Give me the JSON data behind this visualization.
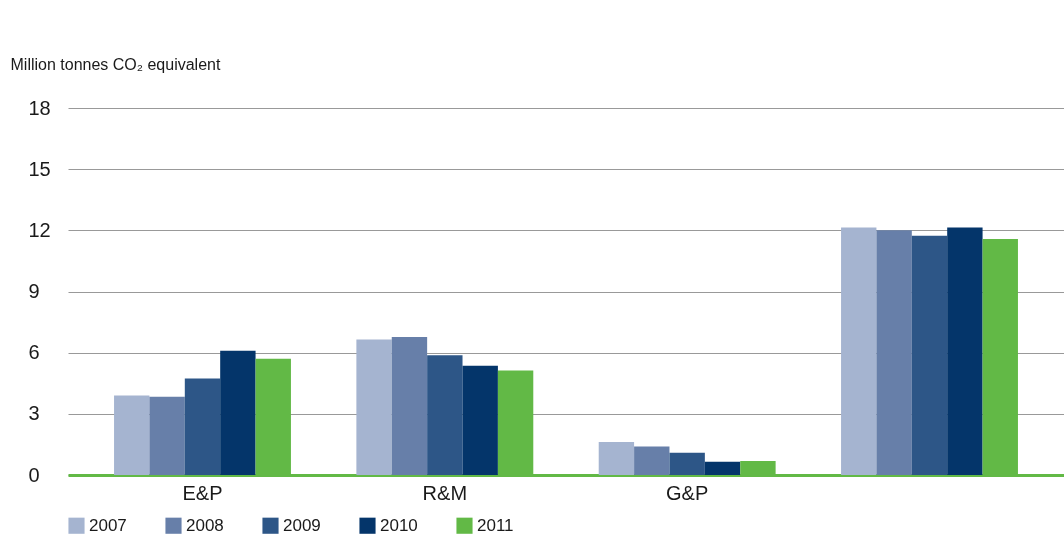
{
  "chart_data": {
    "type": "bar",
    "ylabel": "Million tonnes CO₂ equivalent",
    "categories": [
      "E&P",
      "R&M",
      "G&P",
      null
    ],
    "series": [
      {
        "name": "2007",
        "color": "#a5b4d0",
        "values": [
          3.9,
          6.64,
          1.62,
          12.14
        ]
      },
      {
        "name": "2008",
        "color": "#677fa9",
        "values": [
          3.84,
          6.77,
          1.4,
          12.0
        ]
      },
      {
        "name": "2009",
        "color": "#2d5687",
        "values": [
          4.73,
          5.87,
          1.09,
          11.74
        ]
      },
      {
        "name": "2010",
        "color": "#04356a",
        "values": [
          6.1,
          5.36,
          0.65,
          12.14
        ]
      },
      {
        "name": "2011",
        "color": "#62b946",
        "values": [
          5.7,
          5.13,
          0.69,
          11.58
        ]
      }
    ],
    "ylim": [
      0,
      18
    ],
    "yticks": [
      0,
      3,
      6,
      9,
      12,
      15,
      18
    ],
    "grid": "y",
    "legend": "bottom left"
  }
}
